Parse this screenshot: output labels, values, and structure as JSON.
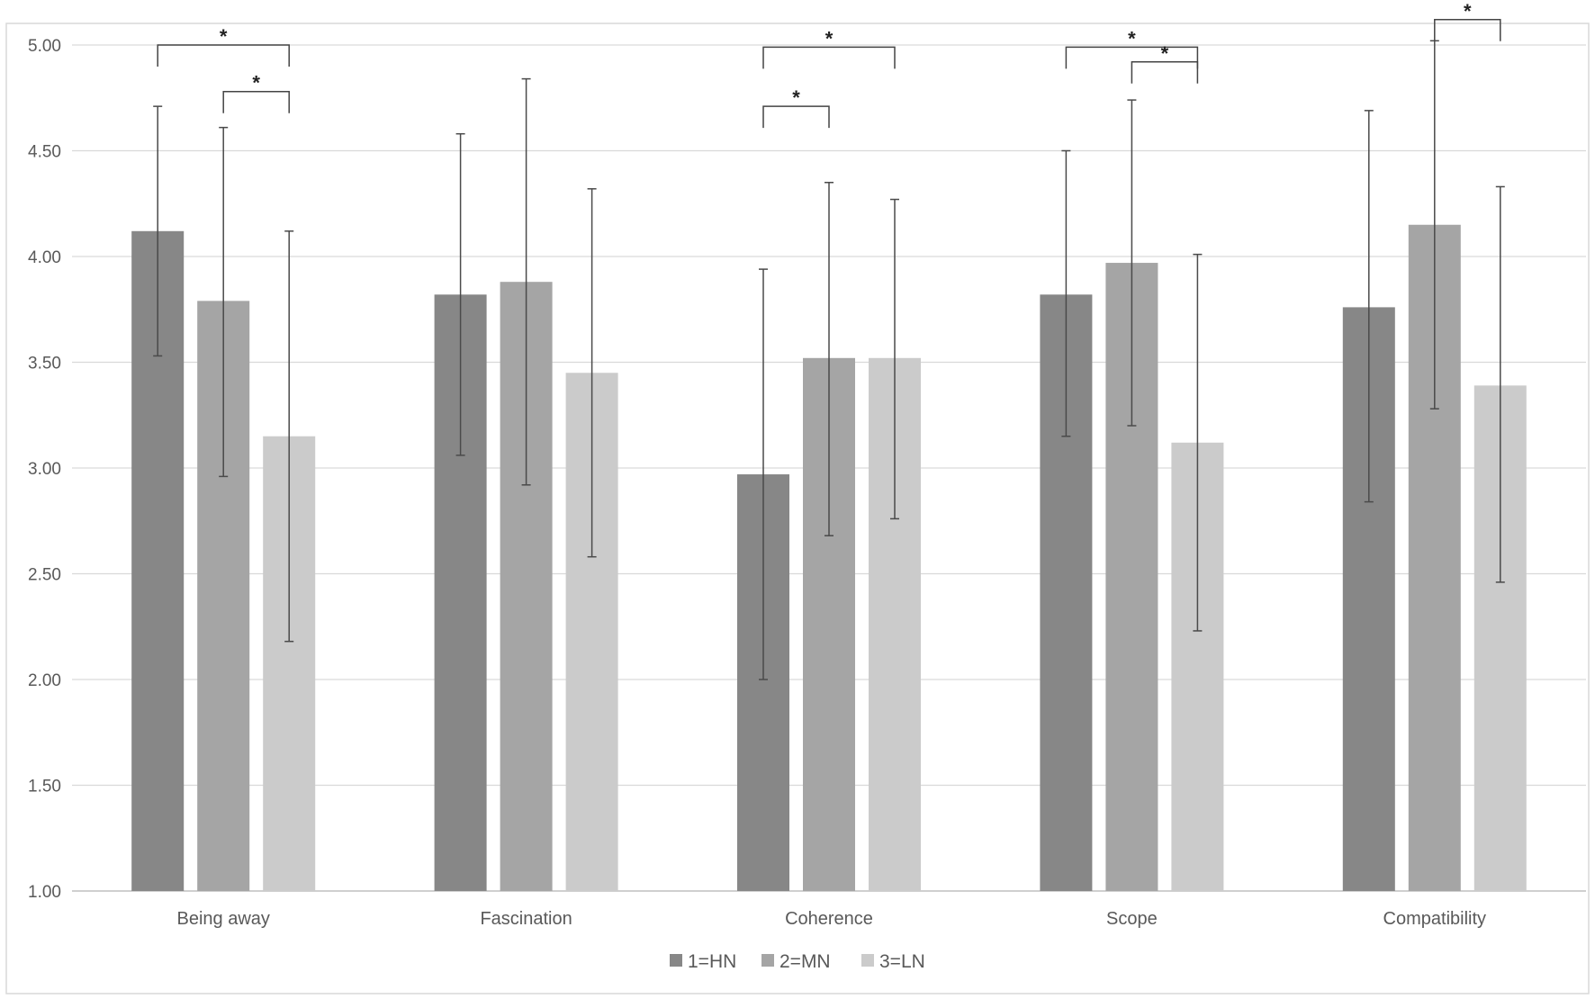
{
  "chart_data": {
    "type": "bar",
    "title": "",
    "xlabel": "",
    "ylabel": "",
    "ylim": [
      1.0,
      5.0
    ],
    "yticks": [
      "1.00",
      "1.50",
      "2.00",
      "2.50",
      "3.00",
      "3.50",
      "4.00",
      "4.50",
      "5.00"
    ],
    "categories": [
      "Being away",
      "Fascination",
      "Coherence",
      "Scope",
      "Compatibility"
    ],
    "grid": true,
    "legend_position": "bottom",
    "series": [
      {
        "name": "1=HN",
        "color": "#878787",
        "values": [
          4.12,
          3.82,
          2.97,
          3.82,
          3.76
        ],
        "err_low": [
          3.53,
          3.06,
          2.0,
          3.15,
          2.84
        ],
        "err_high": [
          4.71,
          4.58,
          3.94,
          4.5,
          4.69
        ]
      },
      {
        "name": "2=MN",
        "color": "#a5a5a5",
        "values": [
          3.79,
          3.88,
          3.52,
          3.97,
          4.15
        ],
        "err_low": [
          2.96,
          2.92,
          2.68,
          3.2,
          3.28
        ],
        "err_high": [
          4.61,
          4.84,
          4.35,
          4.74,
          5.02
        ]
      },
      {
        "name": "3=LN",
        "color": "#cbcbcb",
        "values": [
          3.15,
          3.45,
          3.52,
          3.12,
          3.39
        ],
        "err_low": [
          2.18,
          2.58,
          2.76,
          2.23,
          2.46
        ],
        "err_high": [
          4.12,
          4.32,
          4.27,
          4.01,
          4.33
        ]
      }
    ],
    "significance": [
      {
        "category": 0,
        "from": 0,
        "to": 2,
        "level": 5.0,
        "label": "*"
      },
      {
        "category": 0,
        "from": 1,
        "to": 2,
        "level": 4.78,
        "label": "*"
      },
      {
        "category": 2,
        "from": 0,
        "to": 2,
        "level": 4.99,
        "label": "*"
      },
      {
        "category": 2,
        "from": 0,
        "to": 1,
        "level": 4.71,
        "label": "*"
      },
      {
        "category": 3,
        "from": 0,
        "to": 2,
        "level": 4.99,
        "label": "*"
      },
      {
        "category": 3,
        "from": 1,
        "to": 2,
        "level": 4.92,
        "label": "*"
      }
    ],
    "significance_compat": {
      "category": 4,
      "from": 1,
      "to": 2,
      "level": 5.12,
      "label": "*"
    }
  }
}
